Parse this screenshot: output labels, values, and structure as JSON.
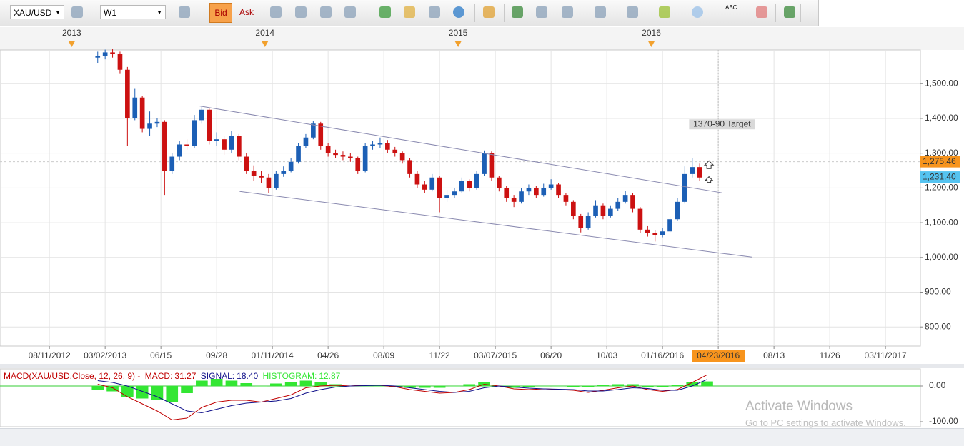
{
  "toolbar": {
    "symbol": "XAU/USD",
    "timeframe": "W1",
    "bid": "Bid",
    "ask": "Ask",
    "text_tool": "ABC"
  },
  "chart_data": [
    {
      "type": "candlestick",
      "x": [
        -2,
        0,
        2,
        4,
        6,
        8,
        10,
        12,
        14,
        16,
        18,
        20,
        22,
        24,
        26,
        28,
        30,
        32,
        34,
        36,
        38,
        40,
        42,
        44,
        46,
        48,
        50,
        52,
        54,
        56,
        58,
        60,
        62,
        64,
        66,
        68,
        70,
        72,
        74,
        76,
        78,
        80,
        82,
        84,
        86,
        88,
        90,
        92,
        94,
        96,
        98,
        100,
        102,
        104,
        106,
        108,
        110,
        112,
        114,
        116,
        118,
        120,
        122,
        124,
        126,
        128,
        130,
        132,
        134,
        136,
        138,
        140,
        142,
        144,
        146,
        148,
        150,
        152,
        154,
        156,
        158,
        160
      ],
      "open": [
        1575,
        1580,
        1590,
        1585,
        1540,
        1400,
        1460,
        1370,
        1385,
        1390,
        1250,
        1290,
        1325,
        1320,
        1395,
        1425,
        1335,
        1340,
        1310,
        1350,
        1290,
        1250,
        1235,
        1230,
        1200,
        1240,
        1250,
        1275,
        1320,
        1345,
        1385,
        1320,
        1300,
        1295,
        1290,
        1285,
        1250,
        1320,
        1325,
        1330,
        1310,
        1300,
        1280,
        1240,
        1210,
        1195,
        1230,
        1170,
        1180,
        1190,
        1220,
        1200,
        1240,
        1300,
        1230,
        1200,
        1170,
        1160,
        1190,
        1200,
        1180,
        1200,
        1210,
        1180,
        1160,
        1120,
        1085,
        1120,
        1150,
        1120,
        1140,
        1160,
        1180,
        1140,
        1080,
        1070,
        1065,
        1075,
        1110,
        1160,
        1240,
        1260
      ],
      "high": [
        1592,
        1598,
        1600,
        1592,
        1548,
        1485,
        1465,
        1420,
        1400,
        1395,
        1300,
        1335,
        1340,
        1410,
        1435,
        1430,
        1360,
        1350,
        1365,
        1355,
        1300,
        1265,
        1250,
        1240,
        1250,
        1262,
        1285,
        1330,
        1355,
        1392,
        1390,
        1330,
        1310,
        1305,
        1300,
        1290,
        1330,
        1335,
        1345,
        1338,
        1318,
        1305,
        1285,
        1250,
        1220,
        1240,
        1235,
        1195,
        1200,
        1230,
        1225,
        1250,
        1308,
        1305,
        1235,
        1205,
        1180,
        1200,
        1210,
        1205,
        1212,
        1225,
        1215,
        1185,
        1165,
        1125,
        1130,
        1165,
        1155,
        1150,
        1170,
        1192,
        1185,
        1145,
        1090,
        1078,
        1085,
        1118,
        1170,
        1262,
        1287,
        1270
      ],
      "low": [
        1560,
        1570,
        1575,
        1530,
        1320,
        1395,
        1360,
        1350,
        1375,
        1180,
        1240,
        1280,
        1310,
        1315,
        1385,
        1325,
        1320,
        1295,
        1300,
        1280,
        1240,
        1220,
        1215,
        1185,
        1195,
        1232,
        1245,
        1270,
        1315,
        1340,
        1310,
        1290,
        1285,
        1280,
        1275,
        1240,
        1245,
        1310,
        1315,
        1300,
        1290,
        1270,
        1230,
        1200,
        1185,
        1190,
        1130,
        1160,
        1170,
        1185,
        1190,
        1195,
        1235,
        1220,
        1190,
        1160,
        1145,
        1155,
        1180,
        1170,
        1175,
        1195,
        1170,
        1150,
        1110,
        1072,
        1080,
        1115,
        1110,
        1115,
        1135,
        1155,
        1130,
        1070,
        1060,
        1046,
        1058,
        1070,
        1105,
        1155,
        1230,
        1220
      ],
      "close": [
        1580,
        1590,
        1585,
        1540,
        1400,
        1460,
        1370,
        1385,
        1390,
        1250,
        1290,
        1325,
        1320,
        1395,
        1425,
        1335,
        1340,
        1310,
        1350,
        1290,
        1250,
        1235,
        1230,
        1200,
        1240,
        1250,
        1275,
        1320,
        1345,
        1385,
        1320,
        1300,
        1295,
        1290,
        1285,
        1250,
        1320,
        1325,
        1330,
        1310,
        1300,
        1280,
        1240,
        1210,
        1195,
        1230,
        1170,
        1180,
        1190,
        1220,
        1200,
        1240,
        1300,
        1230,
        1200,
        1170,
        1160,
        1190,
        1200,
        1180,
        1200,
        1210,
        1180,
        1160,
        1120,
        1085,
        1120,
        1150,
        1120,
        1140,
        1160,
        1180,
        1140,
        1080,
        1070,
        1065,
        1075,
        1110,
        1160,
        1240,
        1260,
        1230
      ],
      "up_color": "#1c5fb5",
      "down_color": "#cc1111",
      "xlim": [
        -28.3,
        219.4
      ],
      "xticks": [
        {
          "value": -15,
          "label": "08/11/2012"
        },
        {
          "value": 0,
          "label": "03/02/2013"
        },
        {
          "value": 15,
          "label": "06/15"
        },
        {
          "value": 30,
          "label": "09/28"
        },
        {
          "value": 45,
          "label": "01/11/2014"
        },
        {
          "value": 60,
          "label": "04/26"
        },
        {
          "value": 75,
          "label": "08/09"
        },
        {
          "value": 90,
          "label": "11/22"
        },
        {
          "value": 105,
          "label": "03/07/2015"
        },
        {
          "value": 120,
          "label": "06/20"
        },
        {
          "value": 135,
          "label": "10/03"
        },
        {
          "value": 150,
          "label": "01/16/2016"
        },
        {
          "value": 165,
          "label": "04/23/2016"
        },
        {
          "value": 180,
          "label": "08/13"
        },
        {
          "value": 195,
          "label": "11/26"
        },
        {
          "value": 210,
          "label": "03/11/2017"
        }
      ],
      "cursor_x": 165,
      "year_markers": [
        {
          "value": -9,
          "label": "2013"
        },
        {
          "value": 43,
          "label": "2014"
        },
        {
          "value": 95,
          "label": "2015"
        },
        {
          "value": 147,
          "label": "2016"
        }
      ],
      "ylim": [
        745,
        1597
      ],
      "yticks": [
        {
          "value": 800,
          "label": "800.00"
        },
        {
          "value": 900,
          "label": "900.00"
        },
        {
          "value": 1000,
          "label": "1,000.00"
        },
        {
          "value": 1100,
          "label": "1,100.00"
        },
        {
          "value": 1200,
          "label": "1,200.00"
        },
        {
          "value": 1300,
          "label": "1,300.00"
        },
        {
          "value": 1400,
          "label": "1,400.00"
        },
        {
          "value": 1500,
          "label": "1,500.00"
        }
      ],
      "grid": true,
      "trendlines": [
        {
          "x": [
            25.2,
            166
          ],
          "y": [
            1436,
            1186
          ]
        },
        {
          "x": [
            36.2,
            174
          ],
          "y": [
            1190,
            1001
          ]
        }
      ],
      "annotations": [
        {
          "text": "1370-90 Target",
          "x": 166,
          "y": 1383
        }
      ],
      "price_lines": [
        {
          "value": 1275.46,
          "label": "1,275.46",
          "color": "#f7941d",
          "dashed": true
        },
        {
          "value": 1231.4,
          "label": "1,231.40",
          "color": "#55c3f0",
          "dashed": false
        }
      ]
    },
    {
      "type": "macd",
      "label": "MACD(XAU/USD,Close, 12, 26, 9) -",
      "x": [
        -2,
        2,
        6,
        10,
        14,
        18,
        22,
        26,
        30,
        34,
        38,
        42,
        46,
        50,
        54,
        58,
        62,
        66,
        70,
        74,
        78,
        82,
        86,
        90,
        94,
        98,
        102,
        106,
        110,
        114,
        118,
        122,
        126,
        130,
        134,
        138,
        142,
        146,
        150,
        154,
        158,
        162
      ],
      "series": [
        {
          "name": "MACD:",
          "color": "#c00000",
          "values": [
            5,
            -5,
            -30,
            -50,
            -70,
            -95,
            -90,
            -60,
            -45,
            -40,
            -40,
            -45,
            -35,
            -25,
            -5,
            0,
            2,
            0,
            3,
            2,
            -2,
            -10,
            -15,
            -20,
            -18,
            -10,
            5,
            0,
            -8,
            -10,
            -8,
            -10,
            -12,
            -18,
            -12,
            -5,
            0,
            -10,
            -15,
            -10,
            10,
            31.27
          ],
          "last_value": 31.27
        },
        {
          "name": "SIGNAL:",
          "color": "#10108a",
          "values": [
            15,
            10,
            0,
            -15,
            -30,
            -50,
            -70,
            -75,
            -65,
            -55,
            -48,
            -45,
            -42,
            -35,
            -20,
            -10,
            -3,
            0,
            1,
            2,
            0,
            -5,
            -10,
            -15,
            -18,
            -15,
            -5,
            0,
            -3,
            -6,
            -8,
            -9,
            -10,
            -14,
            -14,
            -10,
            -5,
            -7,
            -12,
            -12,
            0,
            18.4
          ],
          "last_value": 18.4,
          "last_value_label": "18.40"
        },
        {
          "name": "HISTOGRAM:",
          "color": "#33e633",
          "values": [
            -10,
            -15,
            -30,
            -35,
            -40,
            -45,
            -20,
            15,
            20,
            15,
            8,
            0,
            7,
            10,
            15,
            10,
            5,
            0,
            2,
            0,
            -2,
            -5,
            -5,
            -5,
            0,
            5,
            10,
            0,
            -5,
            -4,
            0,
            -1,
            -2,
            -4,
            2,
            5,
            5,
            -3,
            -3,
            2,
            10,
            12.87
          ],
          "last_value": 12.87
        }
      ],
      "xlim": [
        -28.3,
        219.4
      ],
      "ylim": [
        -114,
        44
      ],
      "yticks": [
        {
          "value": 0,
          "label": "0.00"
        },
        {
          "value": -100,
          "label": "-100.00"
        }
      ],
      "zero_line_color": "#33cc33"
    }
  ],
  "watermark": {
    "title": "Activate Windows",
    "text": "Go to PC settings to activate Windows."
  }
}
